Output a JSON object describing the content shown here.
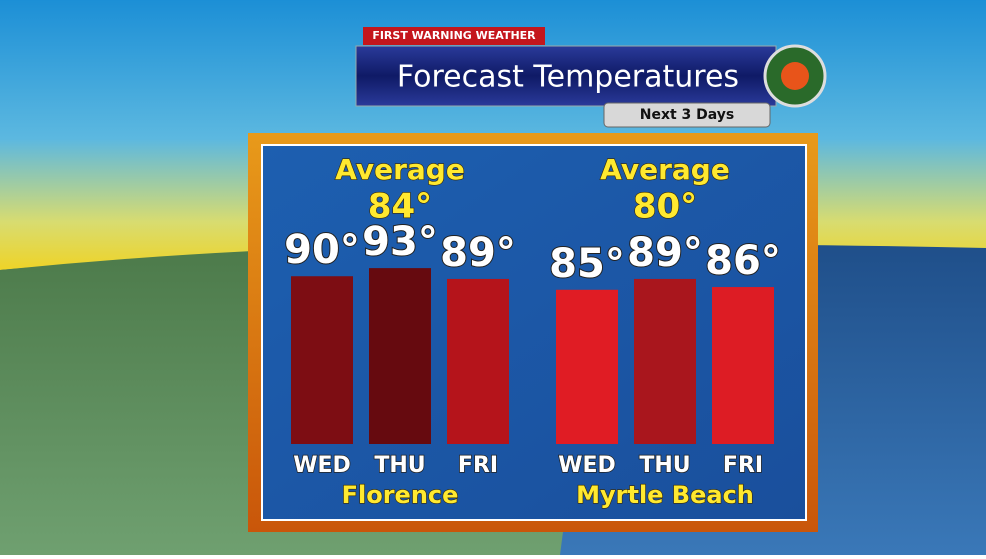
{
  "header": {
    "brand": "FIRST WARNING WEATHER",
    "title": "Forecast Temperatures",
    "subtitle": "Next 3 Days"
  },
  "chart_data": [
    {
      "type": "bar",
      "title": "Florence",
      "annotations": [
        "Average",
        "84°"
      ],
      "categories": [
        "WED",
        "THU",
        "FRI"
      ],
      "values": [
        90,
        93,
        89
      ],
      "value_labels": [
        "90°",
        "93°",
        "89°"
      ],
      "colors": [
        "#7d0d13",
        "#660a0f",
        "#b5141b"
      ],
      "ylim": [
        28,
        96
      ]
    },
    {
      "type": "bar",
      "title": "Myrtle Beach",
      "annotations": [
        "Average",
        "80°"
      ],
      "categories": [
        "WED",
        "THU",
        "FRI"
      ],
      "values": [
        85,
        89,
        86
      ],
      "value_labels": [
        "85°",
        "89°",
        "86°"
      ],
      "colors": [
        "#e01c24",
        "#a9161d",
        "#dd1c24"
      ],
      "ylim": [
        28,
        96
      ]
    }
  ]
}
